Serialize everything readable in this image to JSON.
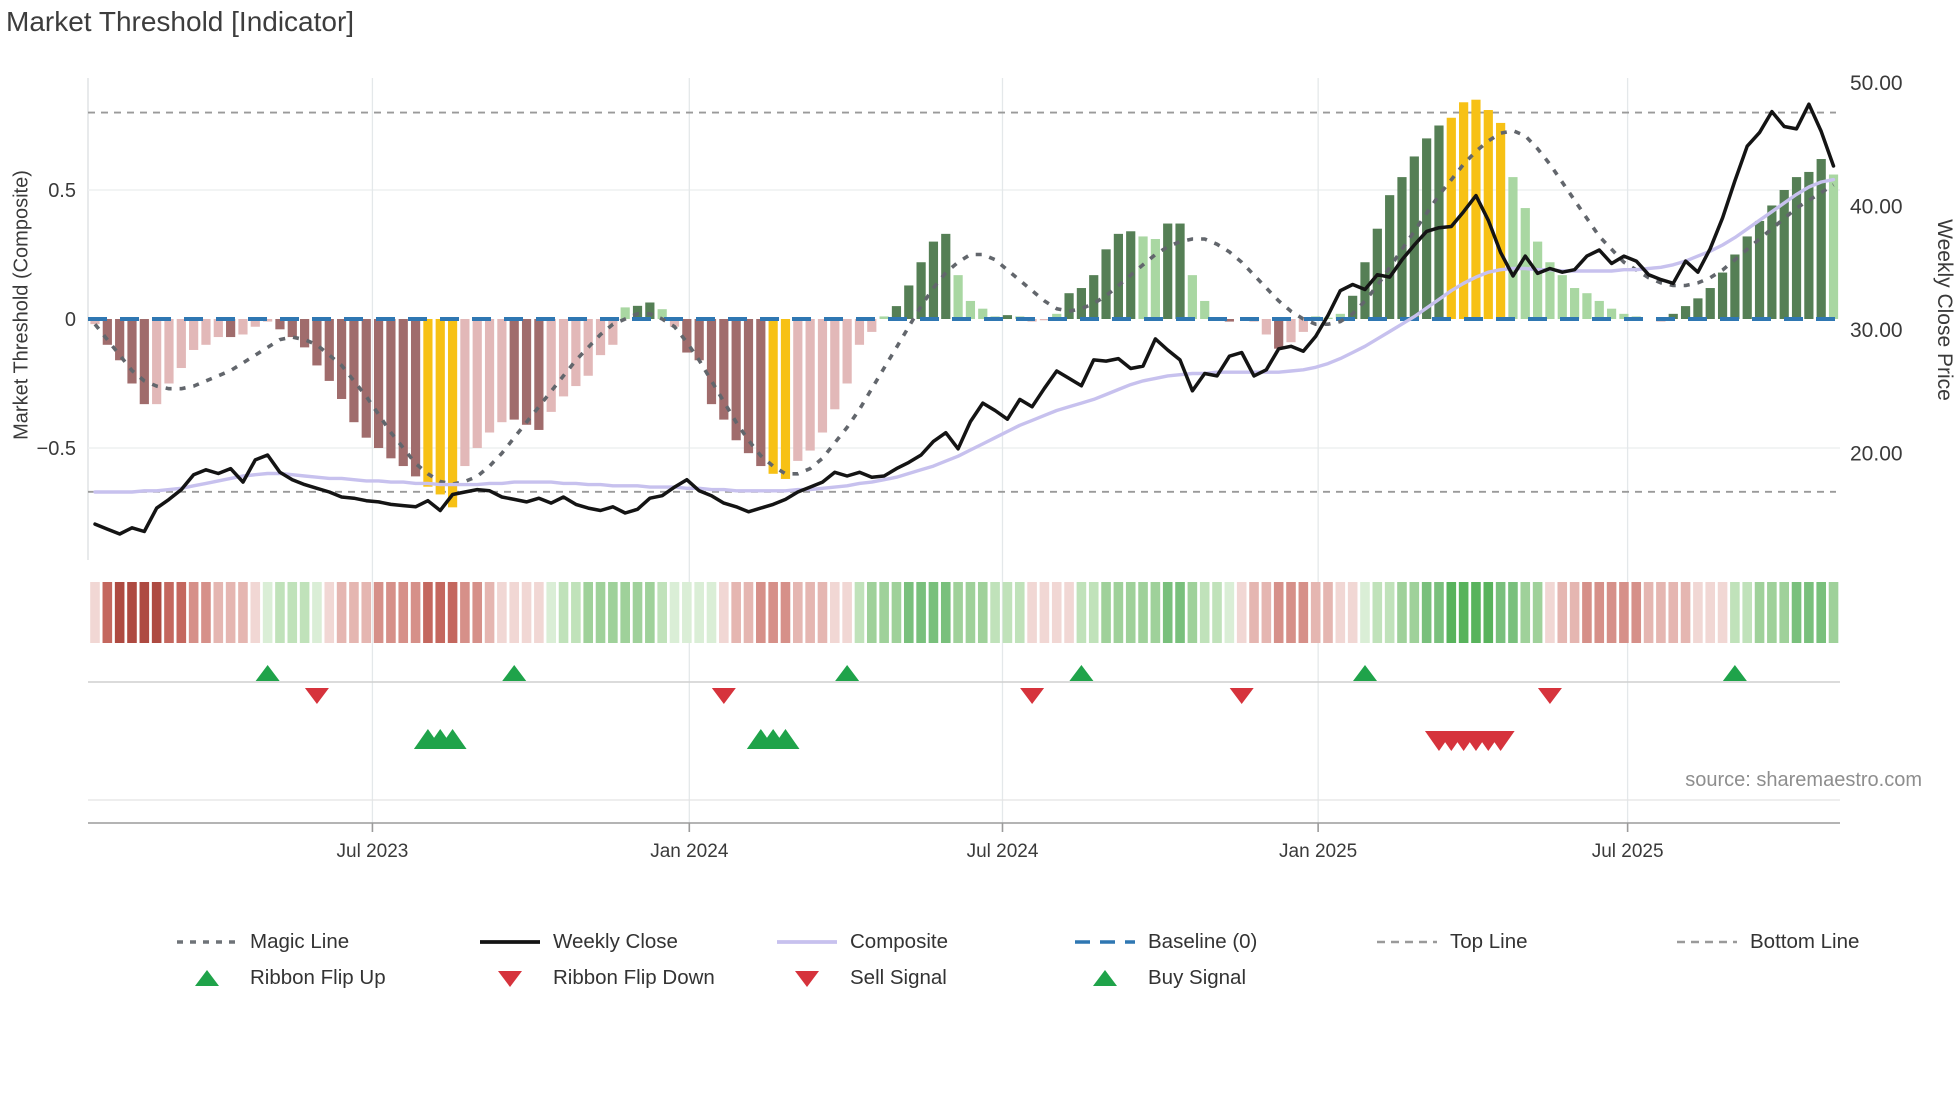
{
  "title": "Market Threshold [Indicator]",
  "source_credit": "source: sharemaestro.com",
  "axes": {
    "left_title": "Market Threshold (Composite)",
    "right_title": "Weekly Close Price",
    "left_ticks": [
      {
        "label": "0.5",
        "value": 0.5
      },
      {
        "label": "0",
        "value": 0.0
      },
      {
        "label": "−0.5",
        "value": -0.5
      }
    ],
    "right_ticks": [
      {
        "label": "50.00",
        "value": 50
      },
      {
        "label": "40.00",
        "value": 40
      },
      {
        "label": "30.00",
        "value": 30
      },
      {
        "label": "20.00",
        "value": 20
      }
    ],
    "x_ticks": [
      {
        "label": "Jul 2023",
        "week": 22.5
      },
      {
        "label": "Jan 2024",
        "week": 48.2
      },
      {
        "label": "Jul 2024",
        "week": 73.6
      },
      {
        "label": "Jan 2025",
        "week": 99.2
      },
      {
        "label": "Jul 2025",
        "week": 124.3
      }
    ]
  },
  "legend": {
    "row1": [
      {
        "label": "Magic Line",
        "swatch": "dotted-gray-line"
      },
      {
        "label": "Weekly Close",
        "swatch": "solid-black-line"
      },
      {
        "label": "Composite",
        "swatch": "solid-purple-line"
      },
      {
        "label": "Baseline (0)",
        "swatch": "dashed-blue-line"
      },
      {
        "label": "Top Line",
        "swatch": "dashed-gray-line"
      },
      {
        "label": "Bottom Line",
        "swatch": "dashed-gray-line"
      }
    ],
    "row2": [
      {
        "label": "Ribbon Flip Up",
        "swatch": "green-up-triangle"
      },
      {
        "label": "Ribbon Flip Down",
        "swatch": "red-down-triangle"
      },
      {
        "label": "Sell Signal",
        "swatch": "red-down-triangle"
      },
      {
        "label": "Buy Signal",
        "swatch": "green-up-triangle"
      }
    ]
  },
  "colors": {
    "bar_dark_red": "#a06c6c",
    "bar_light_pink": "#e2b8b8",
    "bar_yellow": "#f7c115",
    "bar_dark_green": "#557f55",
    "bar_light_green": "#a9d7a2",
    "magic_line": "#62666c",
    "weekly_close": "#141414",
    "composite_line": "#c7c1ee",
    "baseline": "#2f77b2",
    "threshold_lines": "#9a9a9a",
    "flip_up_green": "#1fa34a",
    "flip_down_red": "#d6333c",
    "ribbon_red_levels": [
      "#f1d7d4",
      "#e5b6b1",
      "#d69089",
      "#c4675e",
      "#ae4a41"
    ],
    "ribbon_green_levels": [
      "#daeed6",
      "#c0e2ba",
      "#9fd19a",
      "#79c07c",
      "#58b35c"
    ]
  },
  "chart_data": {
    "type": "combo-indicator: histogram bars (left axis) + magic dotted line (left axis) + weekly close and composite lines (right axis) + trend ribbon + signal markers",
    "weeks": 142,
    "left_axis_range": [
      -0.93,
      0.93
    ],
    "right_axis_range": [
      11.3,
      50.3
    ],
    "baseline": 0,
    "top_line": 0.8,
    "bottom_line": -0.67,
    "composite_bars": {
      "values": [
        -0.02,
        -0.1,
        -0.16,
        -0.25,
        -0.33,
        -0.33,
        -0.25,
        -0.19,
        -0.12,
        -0.1,
        -0.07,
        -0.07,
        -0.06,
        -0.03,
        -0.01,
        -0.04,
        -0.07,
        -0.11,
        -0.18,
        -0.24,
        -0.31,
        -0.4,
        -0.46,
        -0.5,
        -0.54,
        -0.57,
        -0.61,
        -0.65,
        -0.68,
        -0.73,
        -0.57,
        -0.5,
        -0.44,
        -0.4,
        -0.39,
        -0.41,
        -0.43,
        -0.36,
        -0.3,
        -0.26,
        -0.22,
        -0.14,
        -0.1,
        0.045,
        0.051,
        0.064,
        0.038,
        -0.03,
        -0.13,
        -0.16,
        -0.33,
        -0.39,
        -0.47,
        -0.52,
        -0.57,
        -0.6,
        -0.62,
        -0.55,
        -0.51,
        -0.44,
        -0.35,
        -0.25,
        -0.1,
        -0.05,
        0.01,
        0.05,
        0.13,
        0.22,
        0.3,
        0.33,
        0.17,
        0.07,
        0.04,
        0.01,
        0.015,
        0.01,
        -0.01,
        -0.005,
        0.02,
        0.1,
        0.12,
        0.17,
        0.27,
        0.33,
        0.34,
        0.32,
        0.31,
        0.37,
        0.37,
        0.17,
        0.07,
        -0.005,
        -0.01,
        0.0,
        -0.01,
        -0.06,
        -0.115,
        -0.09,
        -0.05,
        0.01,
        0.005,
        0.02,
        0.09,
        0.22,
        0.35,
        0.48,
        0.55,
        0.63,
        0.7,
        0.75,
        0.78,
        0.84,
        0.85,
        0.81,
        0.76,
        0.55,
        0.43,
        0.3,
        0.22,
        0.17,
        0.12,
        0.1,
        0.07,
        0.04,
        0.02,
        0.01,
        0.0,
        -0.01,
        0.02,
        0.05,
        0.08,
        0.12,
        0.18,
        0.25,
        0.32,
        0.38,
        0.44,
        0.5,
        0.55,
        0.57,
        0.62,
        0.56
      ],
      "color_codes": [
        "lp",
        "dr",
        "dr",
        "dr",
        "dr",
        "lp",
        "lp",
        "lp",
        "lp",
        "lp",
        "lp",
        "dr",
        "lp",
        "lp",
        "lp",
        "dr",
        "dr",
        "dr",
        "dr",
        "dr",
        "dr",
        "dr",
        "dr",
        "dr",
        "dr",
        "dr",
        "dr",
        "yl",
        "yl",
        "yl",
        "lp",
        "lp",
        "lp",
        "lp",
        "dr",
        "dr",
        "dr",
        "lp",
        "lp",
        "lp",
        "lp",
        "lp",
        "lp",
        "lg",
        "dg",
        "dg",
        "lg",
        "lp",
        "dr",
        "dr",
        "dr",
        "dr",
        "dr",
        "dr",
        "dr",
        "yl",
        "yl",
        "lp",
        "lp",
        "lp",
        "lp",
        "lp",
        "lp",
        "lp",
        "lg",
        "dg",
        "dg",
        "dg",
        "dg",
        "dg",
        "lg",
        "lg",
        "lg",
        "lg",
        "dg",
        "lg",
        "lp",
        "lp",
        "lg",
        "dg",
        "dg",
        "dg",
        "dg",
        "dg",
        "dg",
        "lg",
        "lg",
        "dg",
        "dg",
        "lg",
        "lg",
        "lp",
        "dr",
        "lp",
        "lp",
        "lp",
        "dr",
        "lp",
        "lp",
        "lg",
        "lg",
        "lg",
        "dg",
        "dg",
        "dg",
        "dg",
        "dg",
        "dg",
        "dg",
        "dg",
        "yl",
        "yl",
        "yl",
        "yl",
        "yl",
        "lg",
        "lg",
        "lg",
        "lg",
        "lg",
        "lg",
        "lg",
        "lg",
        "lg",
        "lg",
        "lg",
        "lg",
        "lp",
        "dg",
        "dg",
        "dg",
        "dg",
        "dg",
        "dg",
        "dg",
        "dg",
        "dg",
        "dg",
        "dg",
        "dg",
        "dg",
        "lg"
      ]
    },
    "ribbon": [
      -1,
      -4,
      -5,
      -5,
      -5,
      -5,
      -4,
      -4,
      -3,
      -3,
      -2,
      -2,
      -2,
      -1,
      1,
      2,
      2,
      2,
      1,
      -1,
      -2,
      -2,
      -2,
      -3,
      -3,
      -3,
      -3,
      -4,
      -4,
      -4,
      -3,
      -3,
      -2,
      -1,
      -1,
      -1,
      -1,
      1,
      2,
      2,
      3,
      3,
      3,
      3,
      3,
      3,
      2,
      1,
      1,
      1,
      1,
      -1,
      -2,
      -2,
      -3,
      -3,
      -3,
      -2,
      -2,
      -2,
      -1,
      -1,
      2,
      3,
      3,
      3,
      4,
      4,
      4,
      4,
      3,
      3,
      3,
      2,
      2,
      2,
      -1,
      -1,
      -1,
      -1,
      2,
      2,
      3,
      3,
      3,
      3,
      3,
      4,
      4,
      3,
      2,
      2,
      1,
      -1,
      -2,
      -2,
      -3,
      -3,
      -3,
      -2,
      -2,
      -1,
      -1,
      1,
      2,
      2,
      3,
      3,
      4,
      4,
      5,
      5,
      5,
      5,
      4,
      4,
      3,
      3,
      -1,
      -2,
      -2,
      -3,
      -3,
      -3,
      -3,
      -3,
      -2,
      -2,
      -2,
      -2,
      -1,
      -1,
      -1,
      2,
      2,
      3,
      3,
      3,
      4,
      4,
      4,
      3
    ],
    "magic_line": [
      -0.02,
      -0.08,
      -0.14,
      -0.2,
      -0.24,
      -0.26,
      -0.27,
      -0.27,
      -0.26,
      -0.24,
      -0.22,
      -0.2,
      -0.17,
      -0.14,
      -0.11,
      -0.08,
      -0.07,
      -0.08,
      -0.1,
      -0.14,
      -0.18,
      -0.24,
      -0.3,
      -0.37,
      -0.44,
      -0.5,
      -0.56,
      -0.6,
      -0.63,
      -0.64,
      -0.63,
      -0.61,
      -0.57,
      -0.52,
      -0.46,
      -0.4,
      -0.34,
      -0.28,
      -0.22,
      -0.16,
      -0.11,
      -0.06,
      -0.02,
      0.0,
      0.02,
      0.02,
      0.0,
      -0.03,
      -0.09,
      -0.16,
      -0.24,
      -0.32,
      -0.4,
      -0.47,
      -0.53,
      -0.57,
      -0.6,
      -0.6,
      -0.58,
      -0.54,
      -0.48,
      -0.42,
      -0.35,
      -0.27,
      -0.19,
      -0.11,
      -0.03,
      0.05,
      0.12,
      0.18,
      0.22,
      0.25,
      0.25,
      0.23,
      0.19,
      0.15,
      0.11,
      0.07,
      0.04,
      0.03,
      0.04,
      0.06,
      0.09,
      0.13,
      0.17,
      0.21,
      0.25,
      0.28,
      0.3,
      0.31,
      0.31,
      0.29,
      0.26,
      0.22,
      0.17,
      0.12,
      0.07,
      0.03,
      0.0,
      -0.02,
      -0.02,
      -0.01,
      0.02,
      0.07,
      0.13,
      0.2,
      0.27,
      0.34,
      0.41,
      0.48,
      0.54,
      0.6,
      0.65,
      0.69,
      0.72,
      0.73,
      0.71,
      0.66,
      0.6,
      0.53,
      0.46,
      0.39,
      0.32,
      0.27,
      0.22,
      0.19,
      0.16,
      0.14,
      0.13,
      0.13,
      0.14,
      0.16,
      0.19,
      0.23,
      0.27,
      0.31,
      0.35,
      0.39,
      0.43,
      0.46,
      0.49,
      0.52
    ],
    "weekly_close": [
      14.2,
      13.8,
      13.4,
      13.9,
      13.6,
      15.5,
      16.2,
      17.0,
      18.2,
      18.6,
      18.3,
      18.7,
      17.6,
      19.4,
      19.8,
      18.4,
      17.8,
      17.4,
      17.1,
      16.8,
      16.4,
      16.3,
      16.1,
      16.0,
      15.8,
      15.7,
      15.6,
      16.1,
      15.3,
      16.6,
      16.8,
      17.0,
      16.9,
      16.4,
      16.2,
      16.0,
      16.3,
      15.9,
      16.4,
      15.8,
      15.5,
      15.3,
      15.6,
      15.1,
      15.4,
      16.3,
      16.5,
      17.2,
      17.8,
      16.9,
      16.5,
      15.9,
      15.6,
      15.2,
      15.5,
      15.8,
      16.2,
      16.8,
      17.2,
      17.6,
      18.4,
      18.1,
      18.4,
      18.0,
      18.1,
      18.7,
      19.2,
      19.8,
      20.9,
      21.6,
      20.3,
      22.5,
      24.0,
      23.4,
      22.7,
      24.3,
      23.7,
      25.2,
      26.6,
      26.0,
      25.4,
      27.5,
      27.4,
      27.6,
      26.8,
      27.0,
      29.2,
      28.3,
      27.5,
      25.0,
      26.4,
      26.2,
      27.8,
      28.1,
      26.2,
      26.7,
      28.4,
      28.6,
      28.2,
      29.4,
      31.1,
      33.1,
      33.6,
      33.2,
      34.4,
      34.2,
      35.6,
      36.8,
      37.9,
      38.2,
      38.3,
      39.5,
      40.8,
      38.8,
      36.2,
      34.3,
      35.9,
      34.5,
      34.9,
      34.6,
      34.8,
      35.9,
      36.4,
      35.3,
      35.9,
      35.5,
      34.4,
      34.0,
      33.7,
      35.5,
      34.6,
      36.5,
      39.0,
      42.0,
      44.8,
      45.9,
      47.6,
      46.4,
      46.2,
      48.2,
      46.0,
      43.2
    ],
    "composite_line": [
      16.8,
      16.8,
      16.8,
      16.8,
      16.9,
      16.9,
      17.0,
      17.1,
      17.3,
      17.5,
      17.7,
      17.9,
      18.1,
      18.2,
      18.3,
      18.3,
      18.2,
      18.1,
      18.0,
      17.9,
      17.9,
      17.8,
      17.7,
      17.7,
      17.6,
      17.6,
      17.5,
      17.5,
      17.4,
      17.4,
      17.4,
      17.4,
      17.5,
      17.5,
      17.6,
      17.6,
      17.6,
      17.6,
      17.5,
      17.5,
      17.4,
      17.4,
      17.3,
      17.3,
      17.3,
      17.2,
      17.2,
      17.2,
      17.1,
      17.1,
      17.0,
      17.0,
      16.9,
      16.9,
      16.9,
      16.9,
      16.9,
      17.0,
      17.0,
      17.1,
      17.2,
      17.3,
      17.5,
      17.6,
      17.8,
      18.0,
      18.3,
      18.6,
      18.9,
      19.3,
      19.7,
      20.2,
      20.7,
      21.2,
      21.7,
      22.2,
      22.6,
      23.0,
      23.4,
      23.7,
      24.0,
      24.3,
      24.7,
      25.1,
      25.5,
      25.8,
      26.0,
      26.2,
      26.3,
      26.4,
      26.4,
      26.5,
      26.5,
      26.5,
      26.5,
      26.5,
      26.5,
      26.6,
      26.7,
      26.9,
      27.2,
      27.6,
      28.1,
      28.6,
      29.2,
      29.8,
      30.4,
      31.0,
      31.7,
      32.4,
      33.1,
      33.7,
      34.2,
      34.6,
      34.8,
      34.9,
      34.9,
      34.8,
      34.8,
      34.7,
      34.7,
      34.7,
      34.7,
      34.7,
      34.8,
      34.8,
      34.9,
      35.0,
      35.2,
      35.5,
      35.9,
      36.3,
      36.8,
      37.4,
      38.1,
      38.8,
      39.5,
      40.2,
      40.9,
      41.5,
      41.9,
      42.1
    ],
    "signals": {
      "ribbon_flip_up_weeks": [
        14,
        34,
        61,
        80,
        103,
        133
      ],
      "ribbon_flip_down_weeks": [
        18,
        51,
        76,
        93,
        118
      ],
      "buy_weeks": [
        27,
        28,
        29,
        54,
        55,
        56
      ],
      "sell_weeks": [
        109,
        110,
        111,
        112,
        113,
        114
      ]
    }
  }
}
